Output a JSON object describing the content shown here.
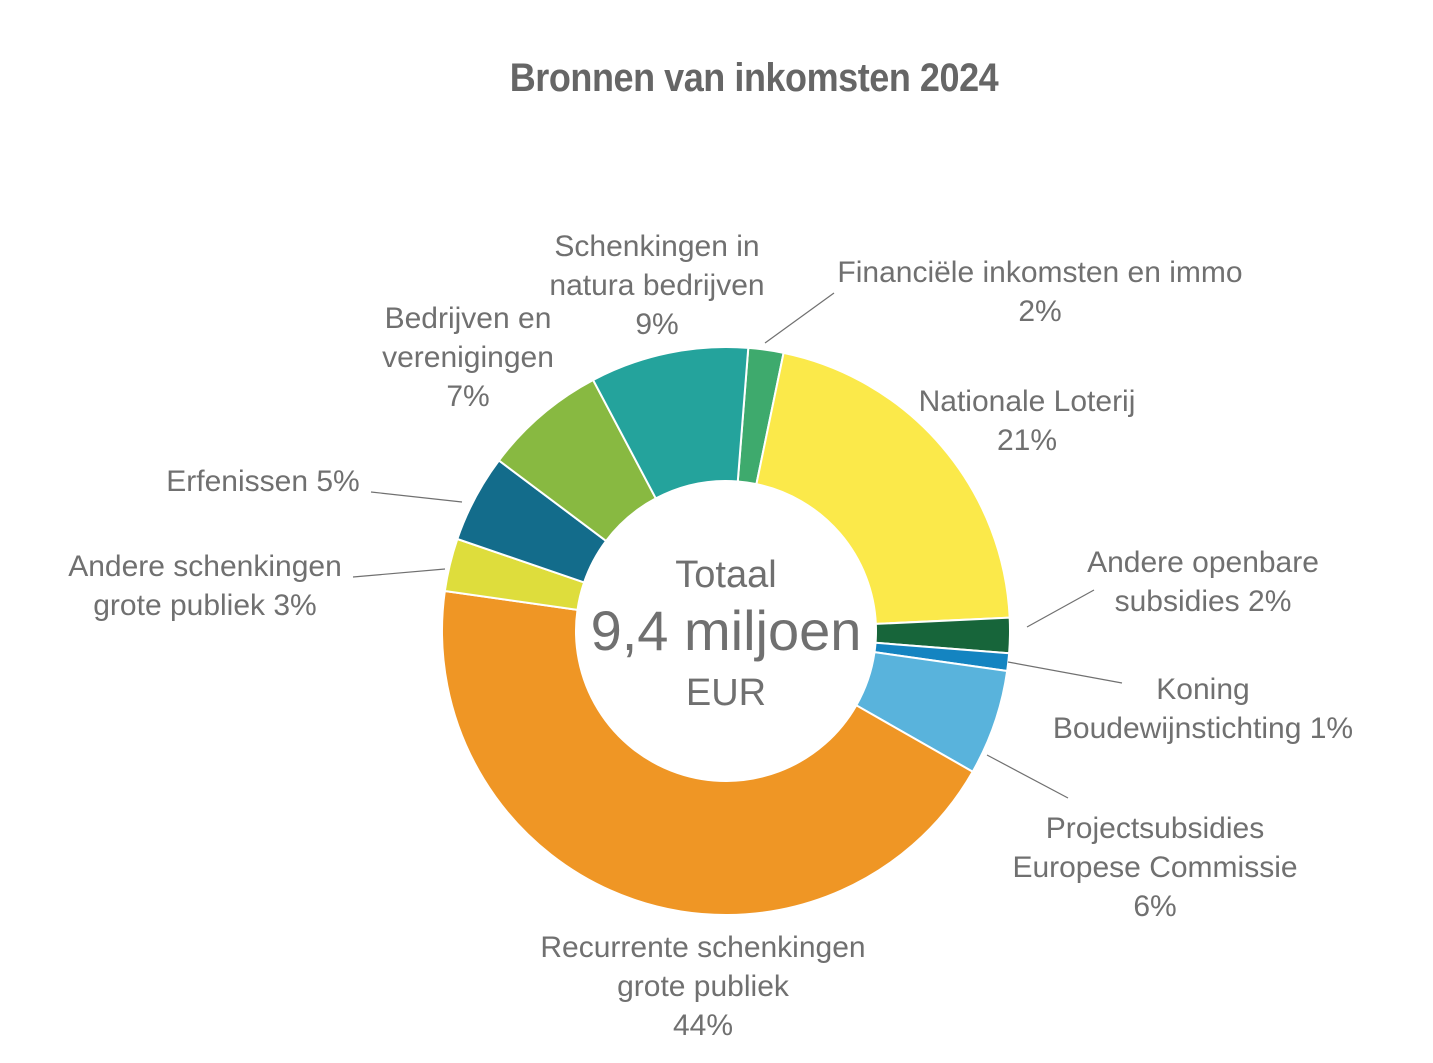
{
  "chart_data": {
    "type": "pie",
    "title": "Bronnen van inkomsten 2024",
    "center_label": {
      "line1": "Totaal",
      "line2": "9,4 miljoen",
      "line3": "EUR"
    },
    "slices": [
      {
        "key": "fin",
        "label_lines": [
          "Financiële inkomsten en immo",
          "2%"
        ],
        "value": 2,
        "color": "#3EAA6D"
      },
      {
        "key": "loterij",
        "label_lines": [
          "Nationale Loterij",
          "21%"
        ],
        "value": 21,
        "color": "#FBE94A"
      },
      {
        "key": "openbare",
        "label_lines": [
          "Andere openbare",
          "subsidies 2%"
        ],
        "value": 2,
        "color": "#17653A"
      },
      {
        "key": "koning",
        "label_lines": [
          "Koning",
          "Boudewijnstichting 1%"
        ],
        "value": 1,
        "color": "#1484C1"
      },
      {
        "key": "project",
        "label_lines": [
          "Projectsubsidies",
          "Europese Commissie",
          "6%"
        ],
        "value": 6,
        "color": "#59B3DC"
      },
      {
        "key": "recurrent",
        "label_lines": [
          "Recurrente schenkingen",
          "grote publiek",
          "44%"
        ],
        "value": 44,
        "color": "#EF9625"
      },
      {
        "key": "andere",
        "label_lines": [
          "Andere schenkingen",
          "grote publiek 3%"
        ],
        "value": 3,
        "color": "#DEDD3C"
      },
      {
        "key": "erfenissen",
        "label_lines": [
          "Erfenissen 5%"
        ],
        "value": 5,
        "color": "#136C8B"
      },
      {
        "key": "bedrijven",
        "label_lines": [
          "Bedrijven en",
          "verenigingen",
          "7%"
        ],
        "value": 7,
        "color": "#88B941"
      },
      {
        "key": "natura",
        "label_lines": [
          "Schenkingen in",
          "natura bedrijven",
          "9%"
        ],
        "value": 9,
        "color": "#24A39C"
      }
    ]
  }
}
